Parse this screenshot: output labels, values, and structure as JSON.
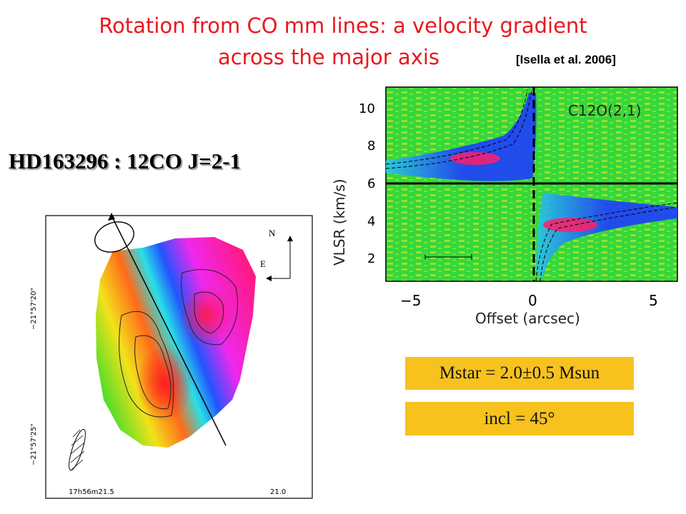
{
  "slide": {
    "title_line1": "Rotation from CO mm lines: a velocity gradient",
    "title_line2": "across the major axis",
    "citation": "[Isella et al. 2006]",
    "source_title": "HD163296 : 12CO J=2-1",
    "mass_box": "Mstar = 2.0±0.5 Msun",
    "incl_box": "incl = 45°"
  },
  "map": {
    "dec_label_top": "−21°57'20\"",
    "dec_label_bottom": "−21°57'25\"",
    "ra_label_left": "17h56m21.5",
    "ra_label_right": "21.0",
    "compass_north": "N",
    "compass_east": "E"
  },
  "pv_diagram": {
    "line_label": "C12O(2,1)",
    "xlabel": "Offset (arcsec)",
    "ylabel": "VLSR (km/s)",
    "x_ticks": [
      "−5",
      "0",
      "5"
    ],
    "y_ticks": [
      "10",
      "8",
      "6",
      "4",
      "2"
    ],
    "colors": {
      "background": "#2fd83a",
      "emission": "#1a3cff",
      "peak": "#ff1f6a"
    }
  }
}
